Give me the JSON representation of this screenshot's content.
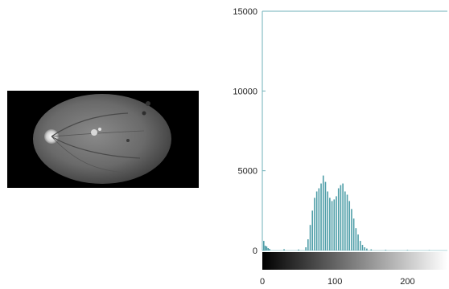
{
  "image_panel": {
    "caption": ""
  },
  "chart_data": {
    "type": "bar",
    "title": "",
    "xlabel": "",
    "ylabel": "",
    "xlim": [
      0,
      255
    ],
    "ylim": [
      0,
      15000
    ],
    "yticks": [
      0,
      5000,
      10000,
      15000
    ],
    "xticks": [
      0,
      100,
      200
    ],
    "colorbar": "grayscale 0-255",
    "x": [
      2,
      4,
      6,
      8,
      10,
      30,
      50,
      60,
      63,
      66,
      69,
      72,
      75,
      78,
      81,
      84,
      87,
      90,
      93,
      96,
      99,
      102,
      105,
      108,
      111,
      114,
      117,
      120,
      123,
      126,
      129,
      132,
      135,
      138,
      141,
      144,
      150,
      170,
      200,
      230
    ],
    "values": [
      600,
      300,
      250,
      150,
      100,
      80,
      60,
      200,
      700,
      1600,
      2500,
      3300,
      3700,
      3900,
      4200,
      4700,
      4300,
      3700,
      3300,
      3100,
      3200,
      3400,
      3900,
      4100,
      4200,
      3700,
      3500,
      3100,
      2600,
      2000,
      1400,
      1000,
      600,
      350,
      200,
      120,
      70,
      40,
      30,
      20
    ],
    "bar_color": "#5aa7b0",
    "colors": {
      "axis": "#6fb0b8",
      "bars": "#4f9ea8",
      "background": "#ffffff"
    }
  }
}
